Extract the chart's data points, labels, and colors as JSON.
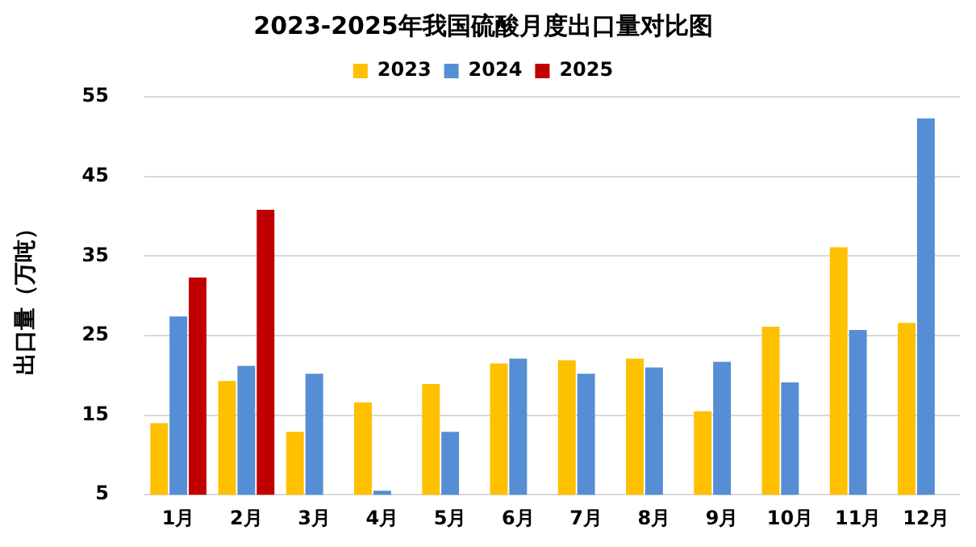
{
  "chart_data": {
    "type": "bar",
    "title": "2023-2025年我国硫酸月度出口量对比图",
    "ylabel": "出口量（万吨）",
    "categories": [
      "1月",
      "2月",
      "3月",
      "4月",
      "5月",
      "6月",
      "7月",
      "8月",
      "9月",
      "10月",
      "11月",
      "12月"
    ],
    "series": [
      {
        "name": "2023",
        "color": "#ffc000",
        "values": [
          14.0,
          19.3,
          12.9,
          16.6,
          18.9,
          21.5,
          21.9,
          22.1,
          15.5,
          26.1,
          36.1,
          26.6
        ]
      },
      {
        "name": "2024",
        "color": "#558ed5",
        "values": [
          27.4,
          21.2,
          20.2,
          5.5,
          12.9,
          22.1,
          20.2,
          21.0,
          21.7,
          19.1,
          25.7,
          52.3
        ]
      },
      {
        "name": "2025",
        "color": "#c00000",
        "values": [
          32.3,
          40.8,
          null,
          null,
          null,
          null,
          null,
          null,
          null,
          null,
          null,
          null
        ]
      }
    ],
    "ylim": [
      5,
      55
    ],
    "yticks": [
      5,
      15,
      25,
      35,
      45,
      55
    ],
    "grid": "y",
    "legend": "top"
  }
}
